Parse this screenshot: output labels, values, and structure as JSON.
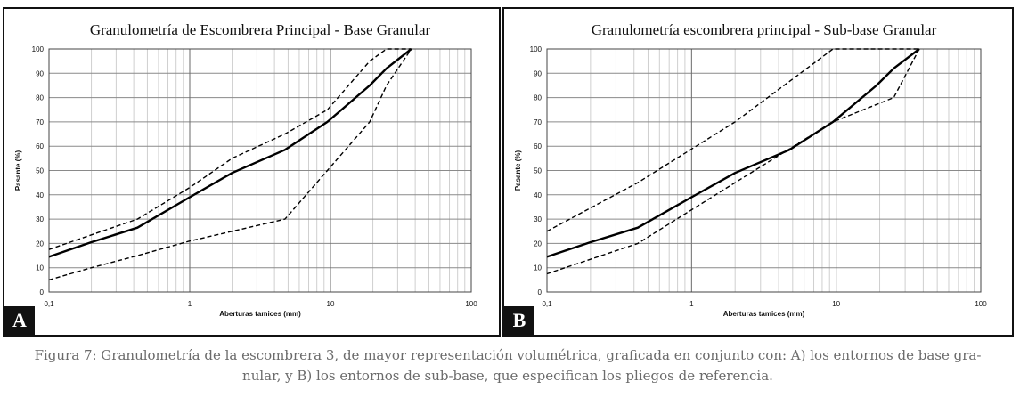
{
  "chart_data": [
    {
      "type": "line",
      "title": "Granulometría de Escombrera Principal - Base Granular",
      "xlabel": "Aberturas tamices (mm)",
      "ylabel": "Pasante (%)",
      "x_scale": "log",
      "xlim": [
        0.1,
        100
      ],
      "ylim": [
        0,
        100
      ],
      "x_ticks": [
        "0,1",
        "1",
        "10",
        "100"
      ],
      "y_ticks": [
        "0",
        "10",
        "20",
        "30",
        "40",
        "50",
        "60",
        "70",
        "80",
        "90",
        "100"
      ],
      "grid": true,
      "panel_label": "A",
      "series": [
        {
          "style": "solid",
          "x": [
            0.1,
            0.2,
            0.425,
            1,
            2,
            4.75,
            9.5,
            19,
            25,
            37.5
          ],
          "y": [
            14.5,
            20.5,
            26.5,
            39,
            49,
            58.5,
            70,
            85,
            92,
            100
          ]
        },
        {
          "style": "dashed",
          "x": [
            0.1,
            0.2,
            0.425,
            1,
            2,
            4.75,
            9.5,
            19,
            25,
            37.5
          ],
          "y": [
            17.5,
            23.5,
            30,
            43,
            55,
            65,
            75,
            95,
            100,
            100
          ]
        },
        {
          "style": "dashed",
          "x": [
            0.1,
            0.2,
            0.425,
            1,
            2,
            4.75,
            9.5,
            19,
            25,
            37.5
          ],
          "y": [
            5,
            10,
            15,
            21,
            25,
            30,
            50,
            70,
            85,
            100
          ]
        }
      ]
    },
    {
      "type": "line",
      "title": "Granulometría escombrera principal - Sub-base Granular",
      "xlabel": "Aberturas tamices (mm)",
      "ylabel": "Pasante (%)",
      "x_scale": "log",
      "xlim": [
        0.1,
        100
      ],
      "ylim": [
        0,
        100
      ],
      "x_ticks": [
        "0,1",
        "1",
        "10",
        "100"
      ],
      "y_ticks": [
        "0",
        "10",
        "20",
        "30",
        "40",
        "50",
        "60",
        "70",
        "80",
        "90",
        "100"
      ],
      "grid": true,
      "panel_label": "B",
      "series": [
        {
          "style": "solid",
          "x": [
            0.1,
            0.2,
            0.425,
            1,
            2,
            4.75,
            9.5,
            19,
            25,
            37.5
          ],
          "y": [
            14.5,
            20.5,
            26.5,
            39,
            49,
            58.5,
            70,
            85,
            92,
            100
          ]
        },
        {
          "style": "dashed",
          "x": [
            0.1,
            0.425,
            2,
            9.5,
            37.5
          ],
          "y": [
            25,
            45,
            70,
            100,
            100
          ]
        },
        {
          "style": "dashed",
          "x": [
            0.1,
            0.425,
            2,
            9.5,
            25,
            37.5
          ],
          "y": [
            7.5,
            20,
            45,
            70,
            80,
            100
          ]
        }
      ]
    }
  ],
  "caption": {
    "line1": "Figura 7: Granulometría de la escombrera 3, de mayor representación volumétrica, graficada en conjunto con: A) los entornos de base gra-",
    "line2": "nular, y B) los entornos de sub-base, que especifican los pliegos de referencia."
  }
}
